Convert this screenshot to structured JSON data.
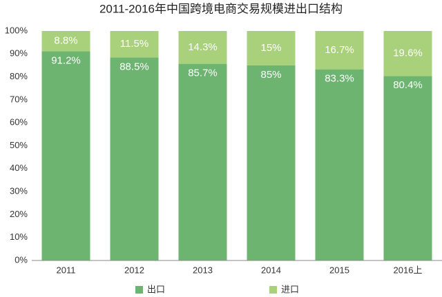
{
  "chart_data": {
    "type": "stacked_bar",
    "title": "2011-2016年中国跨境电商交易规模进出口结构",
    "categories": [
      "2011",
      "2012",
      "2013",
      "2014",
      "2015",
      "2016上"
    ],
    "series": [
      {
        "name": "出口",
        "color": "#6cb46f",
        "values": [
          91.2,
          88.5,
          85.7,
          85,
          83.3,
          80.4
        ],
        "value_labels": [
          "91.2%",
          "88.5%",
          "85.7%",
          "85%",
          "83.3%",
          "80.4%"
        ]
      },
      {
        "name": "进口",
        "color": "#a9d07b",
        "values": [
          8.8,
          11.5,
          14.3,
          15,
          16.7,
          19.6
        ],
        "value_labels": [
          "8.8%",
          "11.5%",
          "14.3%",
          "15%",
          "16.7%",
          "19.6%"
        ]
      }
    ],
    "ylim": [
      0,
      100
    ],
    "yticks": [
      {
        "value": 0,
        "label": "0%"
      },
      {
        "value": 10,
        "label": "10%"
      },
      {
        "value": 20,
        "label": "20%"
      },
      {
        "value": 30,
        "label": "30%"
      },
      {
        "value": 40,
        "label": "40%"
      },
      {
        "value": 50,
        "label": "50%"
      },
      {
        "value": 60,
        "label": "60%"
      },
      {
        "value": 70,
        "label": "70%"
      },
      {
        "value": 80,
        "label": "80%"
      },
      {
        "value": 90,
        "label": "90%"
      },
      {
        "value": 100,
        "label": "100%"
      }
    ],
    "grid": false,
    "legend": "bottom"
  }
}
